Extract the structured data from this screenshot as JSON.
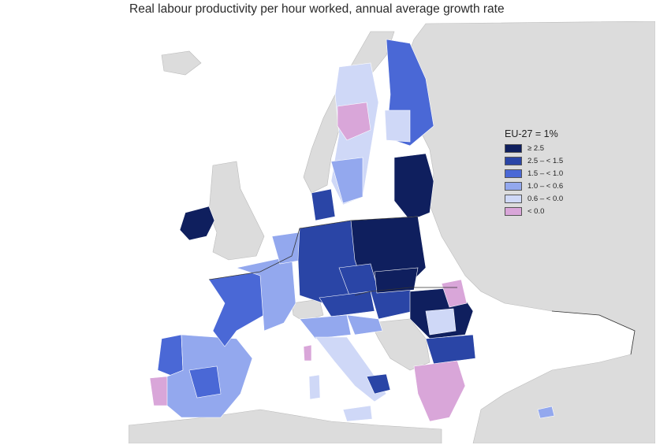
{
  "title": "Real labour productivity per hour worked, annual average growth rate",
  "legend": {
    "title": "EU-27 = 1%",
    "items": [
      {
        "label": "≥ 2.5",
        "color": "#0f1f5e"
      },
      {
        "label": "2.5 – < 1.5",
        "color": "#2a45a6"
      },
      {
        "label": "1.5 – < 1.0",
        "color": "#4a68d6"
      },
      {
        "label": "1.0 – < 0.6",
        "color": "#93a8ee"
      },
      {
        "label": "0.6 – < 0.0",
        "color": "#cfd8f7"
      },
      {
        "label": "< 0.0",
        "color": "#d9a6d9"
      }
    ]
  },
  "colors": {
    "sea": "#ffffff",
    "non_eu_land": "#dcdcdc",
    "border": "#333333"
  }
}
